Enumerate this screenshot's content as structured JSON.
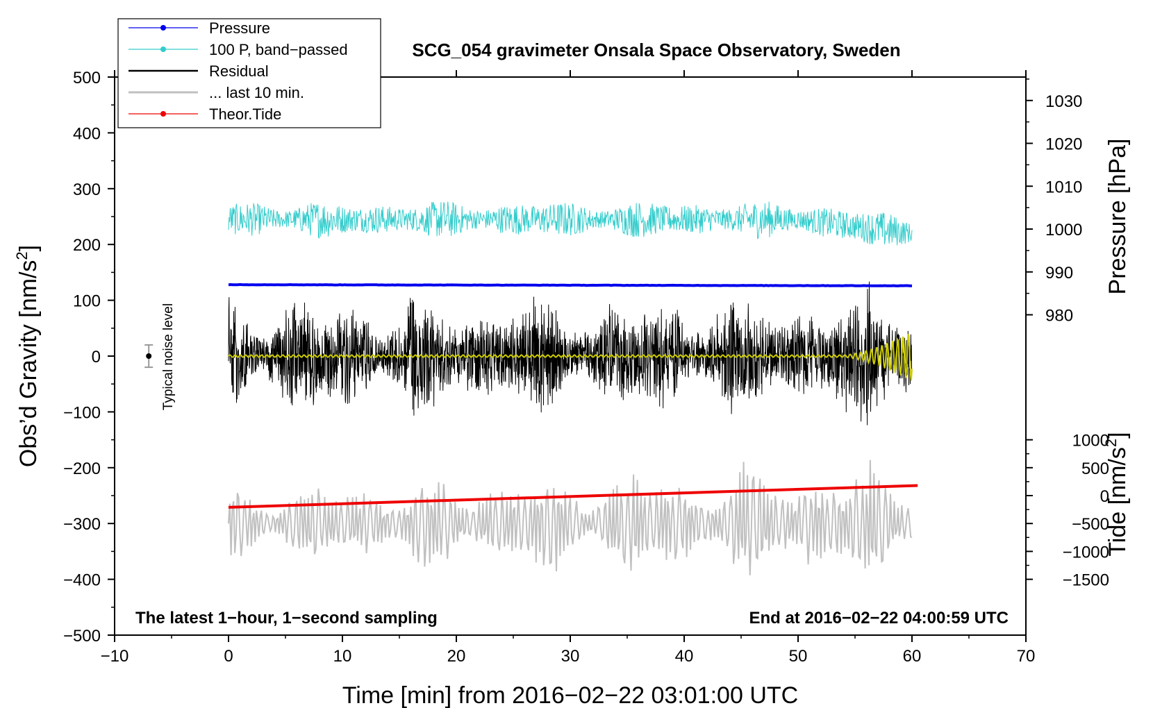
{
  "chart_data": {
    "type": "line",
    "title": "SCG_054 gravimeter Onsala Space Observatory, Sweden",
    "xlabel": "Time [min] from 2016−02−22 03:01:00 UTC",
    "ylabel_base": "Obs’d Gravity [nm/s",
    "ylabel_sup": "2",
    "ylabel_end": "]",
    "right_pressure_label": "Pressure [hPa]",
    "right_tide_label_base": "Tide [nm/s",
    "right_tide_label_sup": "2",
    "right_tide_label_end": "]",
    "annotation_left": "The latest 1−hour, 1−second sampling",
    "annotation_right": "End at 2016−02−22 04:00:59 UTC",
    "noise_label": "Typical noise level",
    "xlim": [
      -10,
      70
    ],
    "ylim": [
      -500,
      500
    ],
    "x_ticks": [
      -10,
      0,
      10,
      20,
      30,
      40,
      50,
      60,
      70
    ],
    "x_tick_labels": [
      "−10",
      "0",
      "10",
      "20",
      "30",
      "40",
      "50",
      "60",
      "70"
    ],
    "y_ticks": [
      -500,
      -400,
      -300,
      -200,
      -100,
      0,
      100,
      200,
      300,
      400,
      500
    ],
    "y_tick_labels": [
      "−500",
      "−400",
      "−300",
      "−200",
      "−100",
      "0",
      "100",
      "200",
      "300",
      "400",
      "500"
    ],
    "pressure_axis": {
      "ticks": [
        980,
        990,
        1000,
        1010,
        1020,
        1030
      ],
      "labels": [
        "980",
        "990",
        "1000",
        "1010",
        "1020",
        "1030"
      ],
      "gravity_at_980": 74,
      "gravity_per_hpa": 7.68
    },
    "tide_axis": {
      "ticks": [
        -1500,
        -1000,
        -500,
        0,
        500,
        1000
      ],
      "labels": [
        "−1500",
        "−1000",
        "−500",
        "0",
        "500",
        "1000"
      ],
      "gravity_at_0": -250,
      "gravity_per_unit": 0.1
    },
    "noise_bar": {
      "x": -7,
      "y": 0,
      "err": 20
    },
    "legend": [
      {
        "label": "Pressure",
        "color": "#0000ee",
        "marker": true
      },
      {
        "label": "100 P, band−passed",
        "color": "#33cccc",
        "marker": true
      },
      {
        "label": "Residual",
        "color": "#000000",
        "marker": false
      },
      {
        "label": "... last 10 min.",
        "color": "#c0c0c0",
        "marker": false
      },
      {
        "label": "Theor.Tide",
        "color": "#ee0000",
        "marker": true
      }
    ],
    "series": [
      {
        "name": "Pressure",
        "color": "#0000ee",
        "axis": "gravity",
        "x_range": [
          0,
          60
        ],
        "y_start": 128,
        "y_end": 126
      },
      {
        "name": "100 P, band-passed",
        "color": "#33cccc",
        "axis": "gravity",
        "x_range": [
          0,
          60
        ],
        "center": 245,
        "amplitude_range": [
          15,
          35
        ]
      },
      {
        "name": "Residual",
        "color": "#000000",
        "axis": "gravity",
        "x_range": [
          0,
          60
        ],
        "center": 0,
        "amplitude_range": [
          40,
          130
        ]
      },
      {
        "name": "... last 10 min.",
        "color": "#c0c0c0",
        "axis": "gravity",
        "x_range": [
          0,
          60
        ],
        "center": -300,
        "amplitude_range": [
          30,
          130
        ]
      },
      {
        "name": "Theor.Tide",
        "color": "#ee0000",
        "axis": "gravity",
        "x_range": [
          0,
          60.5
        ],
        "y_start": -271,
        "y_end": -232
      },
      {
        "name": "filtered",
        "color": "#cccc00",
        "axis": "gravity",
        "x_range": [
          0,
          60
        ],
        "center": 0,
        "amplitude_range": [
          2,
          45
        ]
      }
    ]
  }
}
